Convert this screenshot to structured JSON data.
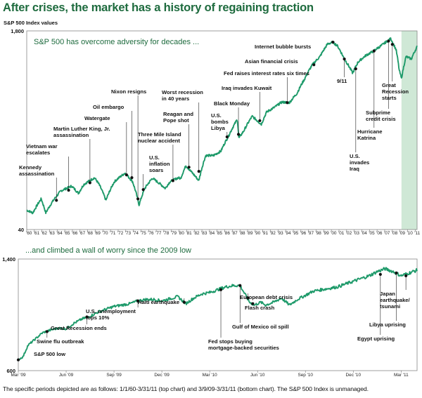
{
  "title": "After crises, the market has a history of regaining traction",
  "ylabel": "S&P 500 Index values",
  "footnote": "The specific periods depicted are as follows: 1/1/60-3/31/11 (top chart) and 3/9/09-3/31/11 (bottom chart). The S&P 500 Index is unmanaged.",
  "colors": {
    "line": "#1e9a6a",
    "title": "#1e6b3e",
    "shade": "#cfe8d6"
  },
  "chart_data": [
    {
      "type": "line",
      "subtitle": "S&P 500 has overcome adversity for decades ...",
      "y_scale": "log",
      "ylim": [
        40,
        1800
      ],
      "ytick_labels": [
        "1,800",
        "40"
      ],
      "xlim": [
        1960,
        2011.25
      ],
      "xtick_labels": [
        "'60",
        "'61",
        "'62",
        "'63",
        "'64",
        "'65",
        "'66",
        "'67",
        "'68",
        "'69",
        "'70",
        "'71",
        "'72",
        "'73",
        "'74",
        "'75",
        "'76",
        "'77",
        "'78",
        "'79",
        "'80",
        "'81",
        "'82",
        "'83",
        "'84",
        "'85",
        "'86",
        "'87",
        "'88",
        "'89",
        "'90",
        "'91",
        "'92",
        "'93",
        "'94",
        "'95",
        "'96",
        "'97",
        "'98",
        "'99",
        "'00",
        "'01",
        "'02",
        "'03",
        "'04",
        "'05",
        "'06",
        "'07",
        "'08",
        "'09",
        "'10",
        "'11"
      ],
      "shaded_region": [
        2009.2,
        2011.25
      ],
      "series": [
        {
          "x": [
            1960,
            1960.8,
            1961.9,
            1962.5,
            1963.5,
            1964.5,
            1965.9,
            1966.8,
            1967.5,
            1968.9,
            1969.5,
            1970.4,
            1971.5,
            1972.9,
            1973.9,
            1974.75,
            1975.5,
            1976.5,
            1977.5,
            1978.2,
            1978.8,
            1979.9,
            1980.2,
            1980.9,
            1981.5,
            1982.6,
            1983.5,
            1984.5,
            1985.5,
            1986.5,
            1987.65,
            1987.85,
            1988.5,
            1989.6,
            1990.8,
            1991.5,
            1992.5,
            1993.5,
            1994.5,
            1995.5,
            1996.5,
            1997.5,
            1998.5,
            1999.5,
            2000.2,
            2000.8,
            2001.7,
            2002.8,
            2003.5,
            2004.5,
            2005.5,
            2006.5,
            2007.8,
            2008.5,
            2008.9,
            2009.2,
            2009.8,
            2010.5,
            2011.25
          ],
          "y": [
            58,
            55,
            72,
            55,
            70,
            84,
            92,
            80,
            95,
            108,
            95,
            70,
            100,
            118,
            100,
            64,
            88,
            107,
            96,
            88,
            100,
            108,
            106,
            136,
            123,
            102,
            165,
            165,
            180,
            240,
            330,
            230,
            265,
            350,
            300,
            380,
            415,
            460,
            455,
            545,
            720,
            940,
            1100,
            1400,
            1450,
            1350,
            1050,
            800,
            990,
            1120,
            1220,
            1350,
            1550,
            1250,
            850,
            720,
            1100,
            1050,
            1330
          ]
        }
      ],
      "annotations": [
        {
          "label": "Kennedy assassination",
          "x": 1963.9,
          "y": 70
        },
        {
          "label": "Vietnam war escalates",
          "x": 1965.5,
          "y": 85
        },
        {
          "label": "Martin Luther King, Jr. assassination",
          "x": 1968.3,
          "y": 98
        },
        {
          "label": "Watergate",
          "x": 1973.1,
          "y": 114
        },
        {
          "label": "Oil embargo",
          "x": 1973.8,
          "y": 108
        },
        {
          "label": "Nixon resigns",
          "x": 1974.6,
          "y": 72
        },
        {
          "label": "U.S. inflation soars",
          "x": 1975.3,
          "y": 86
        },
        {
          "label": "Three Mile Island nuclear accident",
          "x": 1979.2,
          "y": 102
        },
        {
          "label": "Reagan and Pope shot",
          "x": 1981.3,
          "y": 132
        },
        {
          "label": "Worst recession in 40 years",
          "x": 1982.6,
          "y": 122
        },
        {
          "label": "U.S. bombs Libya",
          "x": 1986.3,
          "y": 236
        },
        {
          "label": "Black Monday",
          "x": 1987.8,
          "y": 248
        },
        {
          "label": "Iraq invades Kuwait",
          "x": 1990.6,
          "y": 322
        },
        {
          "label": "Fed raises interest rates six times",
          "x": 1994.2,
          "y": 455
        },
        {
          "label": "Asian financial crisis",
          "x": 1997.7,
          "y": 940
        },
        {
          "label": "Internet bubble bursts",
          "x": 2000.2,
          "y": 1450
        },
        {
          "label": "9/11",
          "x": 2001.7,
          "y": 1050
        },
        {
          "label": "U.S. invades Iraq",
          "x": 2003.2,
          "y": 870
        },
        {
          "label": "Hurricane Katrina",
          "x": 2005.6,
          "y": 1225
        },
        {
          "label": "Subprime credit crisis",
          "x": 2007.5,
          "y": 1480
        },
        {
          "label": "Great Recession starts",
          "x": 2008.0,
          "y": 1390
        }
      ]
    },
    {
      "type": "line",
      "subtitle": "...and climbed a wall of worry since the 2009 low",
      "ylim": [
        600,
        1400
      ],
      "ytick_labels": [
        "1,400",
        "600"
      ],
      "xlim": [
        0,
        25
      ],
      "xtick_labels": [
        "Mar '09",
        "Jun '09",
        "Sep '09",
        "Dec '09",
        "Mar '10",
        "Jun '10",
        "Sep '10",
        "Dec '10",
        "Mar '11"
      ],
      "series": [
        {
          "x": [
            0,
            0.3,
            0.6,
            1.0,
            1.5,
            2.0,
            2.5,
            3.0,
            3.5,
            4.0,
            4.5,
            5.0,
            5.5,
            6.0,
            6.5,
            7.0,
            7.5,
            8.0,
            8.5,
            9.0,
            9.5,
            10.0,
            10.5,
            11.0,
            11.5,
            12.0,
            12.5,
            13.0,
            13.5,
            13.9,
            14.2,
            14.5,
            14.8,
            15.2,
            15.5,
            16.0,
            16.5,
            17.0,
            17.5,
            18.0,
            18.5,
            19.0,
            19.5,
            20.0,
            20.5,
            21.0,
            21.5,
            22.0,
            22.5,
            23.0,
            23.5,
            24.0,
            24.5,
            25.0
          ],
          "y": [
            677,
            700,
            780,
            820,
            870,
            890,
            905,
            900,
            940,
            970,
            990,
            1020,
            1040,
            1060,
            1070,
            1080,
            1100,
            1110,
            1110,
            1100,
            1115,
            1130,
            1080,
            1120,
            1150,
            1160,
            1180,
            1200,
            1210,
            1210,
            1150,
            1090,
            1070,
            1090,
            1070,
            1090,
            1120,
            1070,
            1110,
            1140,
            1170,
            1180,
            1190,
            1200,
            1220,
            1240,
            1260,
            1280,
            1310,
            1330,
            1310,
            1280,
            1300,
            1320
          ]
        }
      ],
      "annotations": [
        {
          "label": "S&P 500 low",
          "x": 0.0,
          "y": 677
        },
        {
          "label": "Swine flu outbreak",
          "x": 1.8,
          "y": 880
        },
        {
          "label": "Great Recession ends",
          "x": 4.3,
          "y": 985
        },
        {
          "label": "U.S. unemployment tops 10%",
          "x": 7.5,
          "y": 1100
        },
        {
          "label": "Haiti earthquake",
          "x": 10.4,
          "y": 1090
        },
        {
          "label": "Fed stops buying mortgage-backed securities",
          "x": 12.7,
          "y": 1180
        },
        {
          "label": "Gulf of Mexico oil spill",
          "x": 13.9,
          "y": 1210
        },
        {
          "label": "European debt crisis",
          "x": 14.4,
          "y": 1120
        },
        {
          "label": "Flash crash",
          "x": 14.7,
          "y": 1080
        },
        {
          "label": "Egypt uprising",
          "x": 22.7,
          "y": 1290
        },
        {
          "label": "Libya uprising",
          "x": 23.7,
          "y": 1300
        },
        {
          "label": "Japan earthquake/ tsunami",
          "x": 24.3,
          "y": 1280
        }
      ]
    }
  ]
}
